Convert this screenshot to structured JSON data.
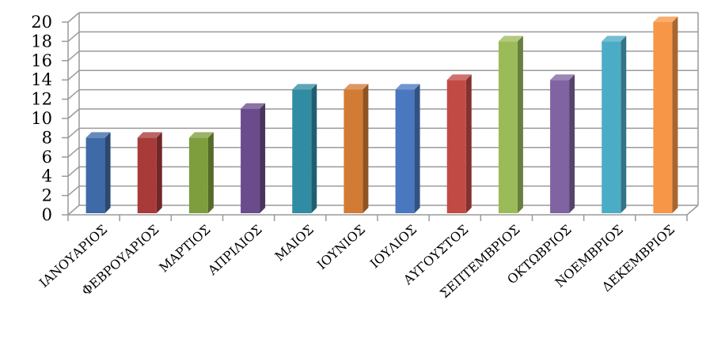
{
  "chart_data": {
    "type": "bar",
    "title": "",
    "xlabel": "",
    "ylabel": "",
    "ylim": [
      0,
      20
    ],
    "yticks": [
      0,
      2,
      4,
      6,
      8,
      10,
      12,
      14,
      16,
      18,
      20
    ],
    "grid": true,
    "style": "3d-columns",
    "categories": [
      "ΙΑΝΟΥΑΡΙΟΣ",
      "ΦΕΒΡΟΥΑΡΙΟΣ",
      "ΜΑΡΤΙΟΣ",
      "ΑΠΡΙΛΙΟΣ",
      "ΜΑΙΟΣ",
      "ΙΟΥΝΙΟΣ",
      "ΙΟΥΛΙΟΣ",
      "ΑΥΓΟΥΣΤΟΣ",
      "ΣΕΠΤΕΜΒΡΙΟΣ",
      "ΟΚΤΩΒΡΙΟΣ",
      "ΝΟΕΜΒΡΙΟΣ",
      "ΔΕΚΕΜΒΡΙΟΣ"
    ],
    "values": [
      8,
      8,
      8,
      11,
      13,
      13,
      13,
      14,
      18,
      14,
      18,
      20
    ],
    "colors": [
      "#3F6AA8",
      "#A83A3A",
      "#7E9E3E",
      "#6A4C8C",
      "#2F8CA3",
      "#D27B34",
      "#4A78C0",
      "#C24A45",
      "#9BBB59",
      "#8064A2",
      "#4BACC6",
      "#F79646"
    ]
  }
}
